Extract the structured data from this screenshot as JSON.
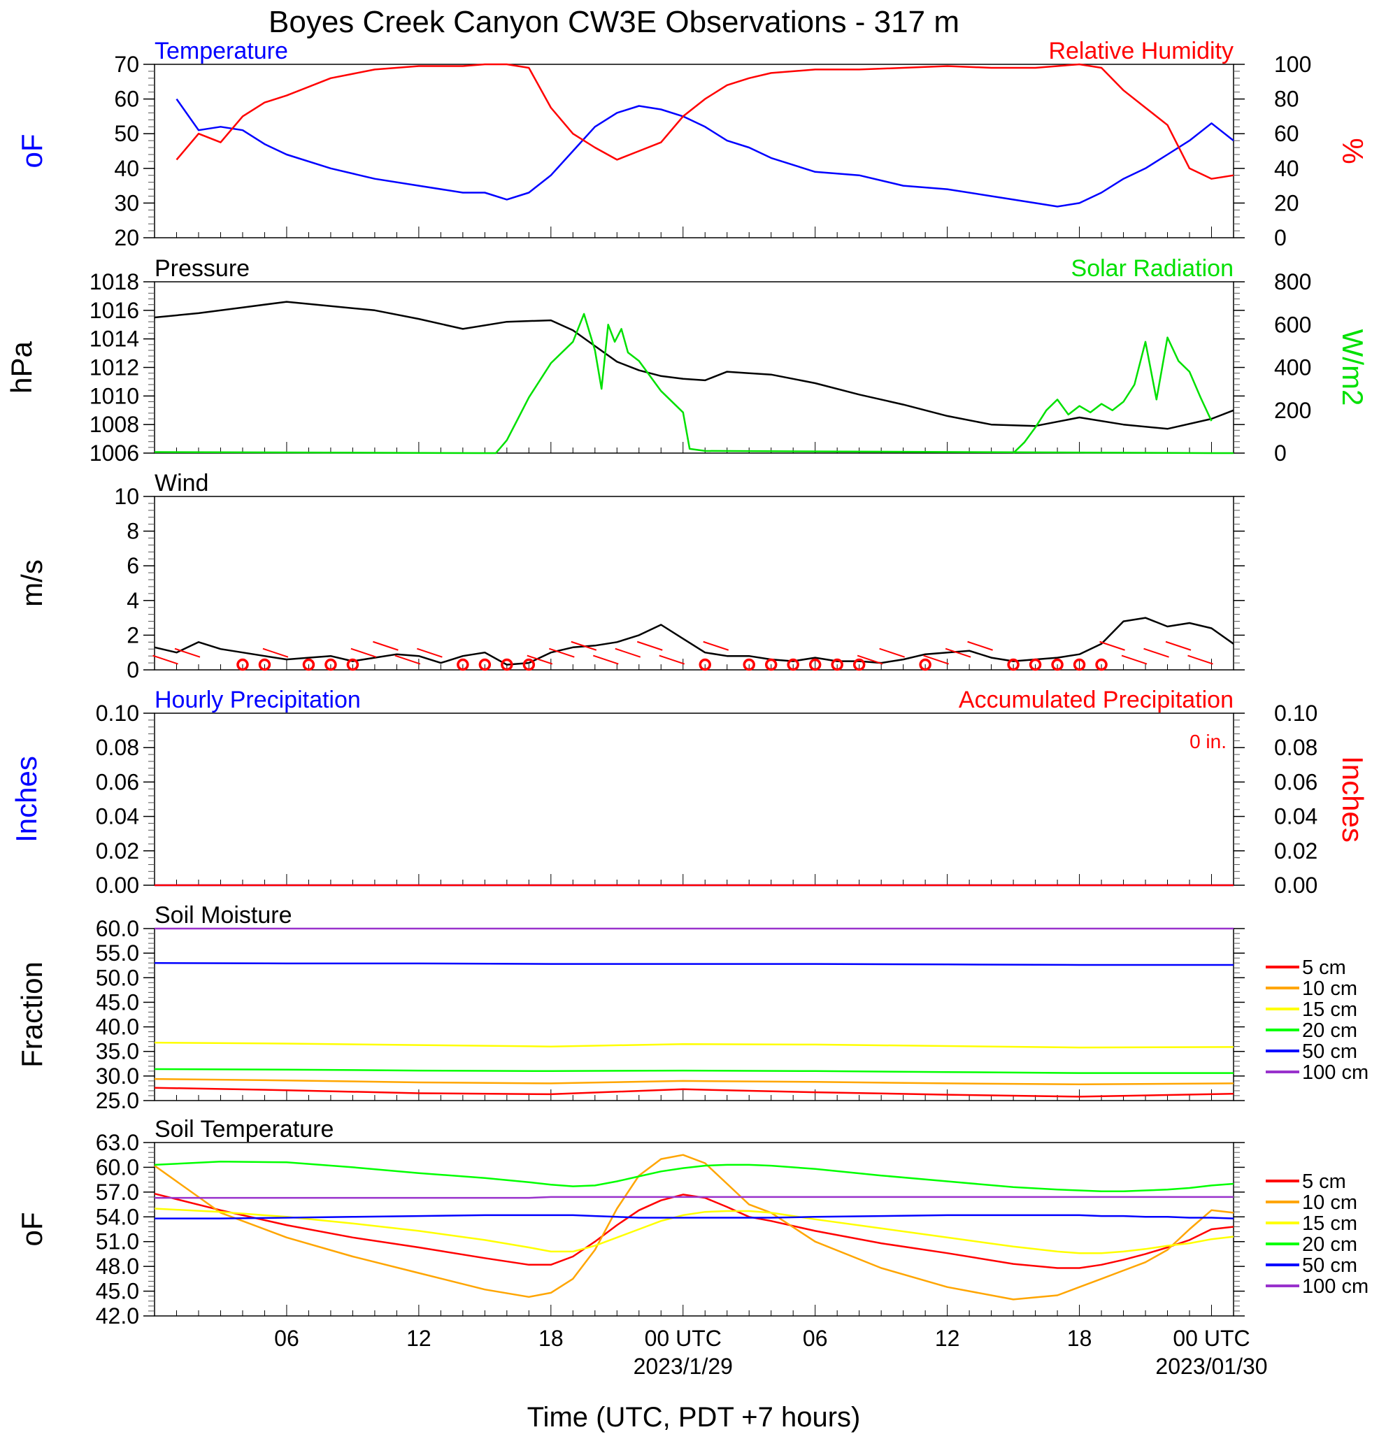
{
  "title": "Boyes Creek Canyon CW3E Observations - 317 m",
  "x_axis": {
    "label": "Time (UTC, PDT +7 hours)",
    "ticks": [
      "06",
      "12",
      "18",
      "00 UTC",
      "06",
      "12",
      "18",
      "00 UTC"
    ],
    "dates": [
      "2023/1/29",
      "2023/01/30"
    ]
  },
  "chart_data": [
    {
      "type": "line",
      "title_left": "Temperature",
      "title_right": "Relative Humidity",
      "ylabel_left": "oF",
      "ylabel_right": "%",
      "ylim_left": [
        20,
        70
      ],
      "ylim_right": [
        0,
        100
      ],
      "yticks_left": [
        "20",
        "30",
        "40",
        "50",
        "60",
        "70"
      ],
      "yticks_right": [
        "0",
        "20",
        "40",
        "60",
        "80",
        "100"
      ],
      "x_hours": [
        1,
        2,
        3,
        4,
        5,
        6,
        8,
        10,
        12,
        14,
        15,
        16,
        17,
        18,
        19,
        20,
        21,
        22,
        23,
        24,
        25,
        26,
        27,
        28,
        30,
        32,
        34,
        36,
        38,
        40,
        41,
        42,
        43,
        44,
        45,
        46,
        47,
        48,
        49
      ],
      "series": [
        {
          "name": "Temperature",
          "color": "#0000ff",
          "axis": "left",
          "values": [
            60,
            51,
            52,
            51,
            47,
            44,
            40,
            37,
            35,
            33,
            33,
            31,
            33,
            38,
            45,
            52,
            56,
            58,
            57,
            55,
            52,
            48,
            46,
            43,
            39,
            38,
            35,
            34,
            32,
            30,
            29,
            30,
            33,
            37,
            40,
            44,
            48,
            53,
            48
          ]
        },
        {
          "name": "Relative Humidity",
          "color": "#ff0000",
          "axis": "right",
          "values": [
            45,
            60,
            55,
            70,
            78,
            82,
            92,
            97,
            99,
            99,
            100,
            100,
            98,
            75,
            60,
            52,
            45,
            50,
            55,
            70,
            80,
            88,
            92,
            95,
            97,
            97,
            98,
            99,
            98,
            98,
            99,
            100,
            98,
            85,
            75,
            65,
            40,
            34,
            36
          ]
        }
      ]
    },
    {
      "type": "line",
      "title_left": "Pressure",
      "title_right": "Solar Radiation",
      "ylabel_left": "hPa",
      "ylabel_right": "W/m2",
      "ylim_left": [
        1006,
        1018
      ],
      "ylim_right": [
        0,
        800
      ],
      "yticks_left": [
        "1006",
        "1008",
        "1010",
        "1012",
        "1014",
        "1016",
        "1018"
      ],
      "yticks_right": [
        "0",
        "200",
        "400",
        "600",
        "800"
      ],
      "series": [
        {
          "name": "Pressure",
          "color": "#000000",
          "axis": "left",
          "x_hours": [
            0,
            2,
            4,
            6,
            8,
            10,
            12,
            14,
            16,
            18,
            19,
            20,
            21,
            22,
            23,
            24,
            25,
            26,
            27,
            28,
            30,
            32,
            34,
            36,
            38,
            40,
            42,
            44,
            46,
            48,
            49
          ],
          "values": [
            1015.5,
            1015.8,
            1016.2,
            1016.6,
            1016.3,
            1016.0,
            1015.4,
            1014.7,
            1015.2,
            1015.3,
            1014.6,
            1013.5,
            1012.4,
            1011.8,
            1011.4,
            1011.2,
            1011.1,
            1011.7,
            1011.6,
            1011.5,
            1010.9,
            1010.1,
            1009.4,
            1008.6,
            1008.0,
            1007.9,
            1008.5,
            1008.0,
            1007.7,
            1008.4,
            1009.0
          ]
        },
        {
          "name": "Solar Radiation",
          "color": "#00e000",
          "axis": "right",
          "x_hours": [
            0,
            15,
            15.5,
            16,
            16.5,
            17,
            18,
            19,
            19.5,
            20,
            20.3,
            20.6,
            20.9,
            21.2,
            21.5,
            22,
            23,
            24,
            24.3,
            25,
            48,
            48.5,
            49
          ],
          "values": [
            5,
            0,
            0,
            60,
            160,
            260,
            420,
            520,
            650,
            480,
            300,
            600,
            520,
            580,
            470,
            430,
            290,
            190,
            20,
            10,
            0,
            0,
            0
          ]
        },
        {
          "name": "Solar Radiation day2",
          "color": "#00e000",
          "axis": "right",
          "x_hours": [
            39,
            39.5,
            40,
            40.5,
            41,
            41.5,
            42,
            42.5,
            43,
            43.5,
            44,
            44.5,
            45,
            45.5,
            46,
            46.5,
            47,
            47.5,
            48
          ],
          "values": [
            0,
            50,
            120,
            200,
            250,
            180,
            220,
            190,
            230,
            200,
            240,
            320,
            520,
            250,
            540,
            430,
            380,
            260,
            150
          ]
        }
      ]
    },
    {
      "type": "line",
      "title_left": "Wind",
      "ylabel_left": "m/s",
      "ylim_left": [
        0,
        10
      ],
      "yticks_left": [
        "0",
        "2",
        "4",
        "6",
        "8",
        "10"
      ],
      "x_hours": [
        0,
        1,
        2,
        3,
        4,
        5,
        6,
        7,
        8,
        9,
        10,
        11,
        12,
        13,
        14,
        15,
        16,
        17,
        18,
        19,
        20,
        21,
        22,
        23,
        24,
        25,
        26,
        27,
        28,
        29,
        30,
        31,
        32,
        33,
        34,
        35,
        36,
        37,
        38,
        39,
        40,
        41,
        42,
        43,
        44,
        45,
        46,
        47,
        48,
        49
      ],
      "series": [
        {
          "name": "Wind Speed",
          "color": "#000000",
          "axis": "left",
          "values": [
            1.3,
            1.0,
            1.6,
            1.2,
            1.0,
            0.8,
            0.6,
            0.7,
            0.8,
            0.5,
            0.7,
            0.9,
            0.8,
            0.4,
            0.8,
            1.0,
            0.3,
            0.4,
            1.0,
            1.3,
            1.4,
            1.6,
            2.0,
            2.6,
            1.8,
            1.0,
            0.8,
            0.8,
            0.6,
            0.5,
            0.7,
            0.5,
            0.5,
            0.4,
            0.6,
            0.9,
            1.0,
            1.1,
            0.7,
            0.5,
            0.6,
            0.7,
            0.9,
            1.5,
            2.8,
            3.0,
            2.5,
            2.7,
            2.4,
            1.5
          ]
        }
      ],
      "barb_hours": [
        1,
        2,
        4,
        5,
        6,
        8,
        9,
        10,
        11,
        12,
        13,
        14,
        15,
        16,
        17,
        18,
        19,
        20,
        21,
        22,
        23,
        24,
        25,
        26,
        27,
        28,
        29,
        30,
        31,
        32,
        33,
        34,
        35,
        36,
        37,
        38,
        39,
        40,
        41,
        42,
        43,
        44,
        45,
        46,
        47,
        48
      ],
      "calm_hours": [
        4,
        5,
        7,
        8,
        9,
        14,
        15,
        16,
        17,
        25,
        27,
        28,
        29,
        30,
        31,
        32,
        35,
        39,
        40,
        41,
        42,
        43
      ]
    },
    {
      "type": "line",
      "title_left": "Hourly Precipitation",
      "title_right": "Accumulated Precipitation",
      "annotation": "0 in.",
      "ylabel_left": "Inches",
      "ylabel_right": "Inches",
      "ylim_left": [
        0,
        0.1
      ],
      "ylim_right": [
        0,
        0.1
      ],
      "yticks_left": [
        "0.00",
        "0.02",
        "0.04",
        "0.06",
        "0.08",
        "0.10"
      ],
      "yticks_right": [
        "0.00",
        "0.02",
        "0.04",
        "0.06",
        "0.08",
        "0.10"
      ],
      "x_hours": [
        0,
        49
      ],
      "series": [
        {
          "name": "Hourly Precipitation",
          "color": "#0000ff",
          "axis": "left",
          "values": [
            0,
            0
          ]
        },
        {
          "name": "Accumulated Precipitation",
          "color": "#ff0000",
          "axis": "right",
          "values": [
            0,
            0
          ]
        }
      ]
    },
    {
      "type": "line",
      "title_left": "Soil Moisture",
      "ylabel_left": "Fraction",
      "ylim_left": [
        25,
        60
      ],
      "yticks_left": [
        "25.0",
        "30.0",
        "35.0",
        "40.0",
        "45.0",
        "50.0",
        "55.0",
        "60.0"
      ],
      "x_hours": [
        0,
        6,
        12,
        18,
        24,
        30,
        36,
        42,
        49
      ],
      "series": [
        {
          "name": "5 cm",
          "color": "#ff0000",
          "values": [
            27.6,
            27.1,
            26.5,
            26.3,
            27.3,
            26.7,
            26.2,
            25.8,
            26.4
          ]
        },
        {
          "name": "10 cm",
          "color": "#ffa500",
          "values": [
            29.4,
            29.1,
            28.7,
            28.5,
            29.0,
            28.8,
            28.5,
            28.3,
            28.5
          ]
        },
        {
          "name": "15 cm",
          "color": "#ffff00",
          "values": [
            36.8,
            36.6,
            36.3,
            36.0,
            36.5,
            36.4,
            36.1,
            35.8,
            35.9
          ]
        },
        {
          "name": "20 cm",
          "color": "#00ff00",
          "values": [
            31.4,
            31.3,
            31.1,
            31.0,
            31.1,
            31.0,
            30.8,
            30.6,
            30.6
          ]
        },
        {
          "name": "50 cm",
          "color": "#0000ff",
          "values": [
            53.0,
            52.9,
            52.9,
            52.8,
            52.8,
            52.8,
            52.7,
            52.6,
            52.6
          ]
        },
        {
          "name": "100 cm",
          "color": "#9932cc",
          "values": [
            60.0,
            60.0,
            60.0,
            60.0,
            60.0,
            60.0,
            60.0,
            60.0,
            60.0
          ]
        }
      ]
    },
    {
      "type": "line",
      "title_left": "Soil Temperature",
      "ylabel_left": "oF",
      "ylim_left": [
        42,
        63
      ],
      "yticks_left": [
        "42.0",
        "45.0",
        "48.0",
        "51.0",
        "54.0",
        "57.0",
        "60.0",
        "63.0"
      ],
      "x_hours": [
        0,
        3,
        6,
        9,
        12,
        15,
        17,
        18,
        19,
        20,
        21,
        22,
        23,
        24,
        25,
        26,
        27,
        28,
        30,
        33,
        36,
        39,
        41,
        42,
        43,
        44,
        45,
        46,
        47,
        48,
        49
      ],
      "series": [
        {
          "name": "5 cm",
          "color": "#ff0000",
          "values": [
            56.8,
            54.8,
            53.0,
            51.5,
            50.3,
            49.0,
            48.2,
            48.2,
            49.2,
            51.0,
            53.0,
            54.8,
            56.0,
            56.7,
            56.3,
            55.2,
            54.0,
            53.5,
            52.3,
            50.8,
            49.6,
            48.3,
            47.8,
            47.8,
            48.2,
            48.8,
            49.5,
            50.3,
            51.2,
            52.5,
            52.8
          ]
        },
        {
          "name": "10 cm",
          "color": "#ffa500",
          "values": [
            60.2,
            54.5,
            51.5,
            49.2,
            47.2,
            45.2,
            44.3,
            44.8,
            46.5,
            50.0,
            55.0,
            59.0,
            61.0,
            61.5,
            60.5,
            58.0,
            55.5,
            54.5,
            51.0,
            47.8,
            45.5,
            44.0,
            44.5,
            45.5,
            46.5,
            47.5,
            48.5,
            50.0,
            52.5,
            54.8,
            54.5
          ]
        },
        {
          "name": "15 cm",
          "color": "#ffff00",
          "values": [
            55.0,
            54.6,
            54.0,
            53.2,
            52.3,
            51.2,
            50.3,
            49.8,
            49.8,
            50.5,
            51.5,
            52.5,
            53.5,
            54.2,
            54.6,
            54.7,
            54.7,
            54.5,
            53.7,
            52.6,
            51.5,
            50.4,
            49.8,
            49.6,
            49.6,
            49.8,
            50.1,
            50.5,
            50.8,
            51.3,
            51.6
          ]
        },
        {
          "name": "20 cm",
          "color": "#00ff00",
          "values": [
            60.3,
            60.7,
            60.6,
            60.0,
            59.3,
            58.7,
            58.2,
            57.9,
            57.7,
            57.8,
            58.3,
            58.9,
            59.5,
            59.9,
            60.2,
            60.3,
            60.3,
            60.2,
            59.8,
            59.0,
            58.3,
            57.6,
            57.3,
            57.2,
            57.1,
            57.1,
            57.2,
            57.3,
            57.5,
            57.8,
            58.0
          ]
        },
        {
          "name": "50 cm",
          "color": "#0000ff",
          "values": [
            53.8,
            53.8,
            53.9,
            54.0,
            54.1,
            54.2,
            54.2,
            54.2,
            54.2,
            54.1,
            54.0,
            53.9,
            53.9,
            53.9,
            53.9,
            53.9,
            53.9,
            53.9,
            54.0,
            54.1,
            54.2,
            54.2,
            54.2,
            54.2,
            54.1,
            54.1,
            54.0,
            54.0,
            53.9,
            53.9,
            53.8
          ]
        },
        {
          "name": "100 cm",
          "color": "#9932cc",
          "values": [
            56.3,
            56.3,
            56.3,
            56.3,
            56.3,
            56.3,
            56.3,
            56.4,
            56.4,
            56.4,
            56.4,
            56.4,
            56.4,
            56.4,
            56.4,
            56.4,
            56.4,
            56.4,
            56.4,
            56.4,
            56.4,
            56.4,
            56.4,
            56.4,
            56.4,
            56.4,
            56.4,
            56.4,
            56.4,
            56.4,
            56.4
          ]
        }
      ]
    }
  ]
}
